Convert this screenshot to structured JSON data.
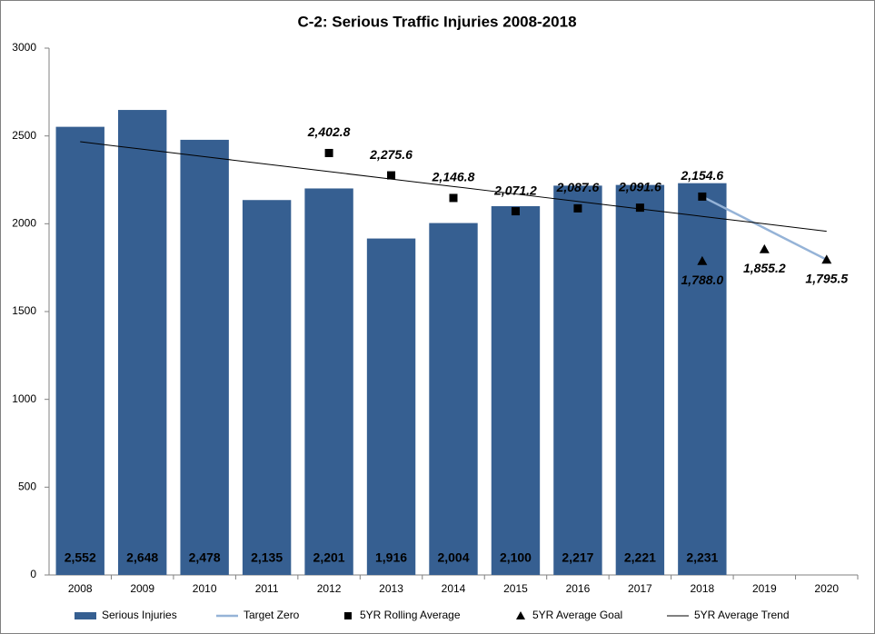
{
  "chart_data": {
    "type": "bar",
    "title": "C-2: Serious Traffic Injuries 2008-2018",
    "categories": [
      "2008",
      "2009",
      "2010",
      "2011",
      "2012",
      "2013",
      "2014",
      "2015",
      "2016",
      "2017",
      "2018",
      "2019",
      "2020"
    ],
    "ylim": [
      0,
      3000
    ],
    "yticks": [
      0,
      500,
      1000,
      1500,
      2000,
      2500,
      3000
    ],
    "grid": false,
    "legend": "bottom",
    "series": [
      {
        "name": "Serious Injuries",
        "kind": "bar",
        "color": "#365f91",
        "values": [
          2552,
          2648,
          2478,
          2135,
          2201,
          1916,
          2004,
          2100,
          2217,
          2221,
          2231,
          null,
          null
        ],
        "value_labels": [
          "2,552",
          "2,648",
          "2,478",
          "2,135",
          "2,201",
          "1,916",
          "2,004",
          "2,100",
          "2,217",
          "2,221",
          "2,231",
          null,
          null
        ]
      },
      {
        "name": "Target Zero",
        "kind": "line",
        "color": "#95b3d7",
        "values": [
          null,
          null,
          null,
          null,
          null,
          null,
          null,
          null,
          null,
          null,
          2154.6,
          1975,
          1795.5
        ]
      },
      {
        "name": "5YR Rolling Average",
        "kind": "square",
        "color": "#000000",
        "values": [
          null,
          null,
          null,
          null,
          2402.8,
          2275.6,
          2146.8,
          2071.2,
          2087.6,
          2091.6,
          2154.6,
          null,
          null
        ],
        "value_labels": [
          null,
          null,
          null,
          null,
          "2,402.8",
          "2,275.6",
          "2,146.8",
          "2,071.2",
          "2,087.6",
          "2,091.6",
          "2,154.6",
          null,
          null
        ]
      },
      {
        "name": "5YR Average Goal",
        "kind": "triangle",
        "color": "#000000",
        "values": [
          null,
          null,
          null,
          null,
          null,
          null,
          null,
          null,
          null,
          null,
          1788.0,
          1855.2,
          1795.5
        ],
        "value_labels": [
          null,
          null,
          null,
          null,
          null,
          null,
          null,
          null,
          null,
          null,
          "1,788.0",
          "1,855.2",
          "1,795.5"
        ]
      },
      {
        "name": "5YR Average Trend",
        "kind": "thinline",
        "color": "#000000",
        "values": [
          2467,
          2424.5,
          2382,
          2339.5,
          2297,
          2254.5,
          2212,
          2169.5,
          2127,
          2084.5,
          2042,
          1999.5,
          1957
        ]
      }
    ]
  }
}
